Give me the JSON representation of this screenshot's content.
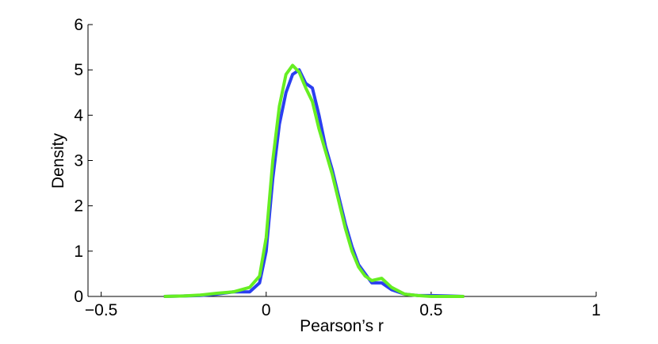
{
  "chart_data": {
    "type": "line",
    "x_label": "Pearson’s r",
    "y_label": "Density",
    "x": [
      -0.31,
      -0.25,
      -0.2,
      -0.15,
      -0.1,
      -0.05,
      -0.02,
      0,
      0.02,
      0.04,
      0.06,
      0.08,
      0.1,
      0.12,
      0.14,
      0.16,
      0.18,
      0.2,
      0.22,
      0.24,
      0.26,
      0.28,
      0.3,
      0.32,
      0.35,
      0.38,
      0.42,
      0.46,
      0.5,
      0.55,
      0.6
    ],
    "series": [
      {
        "color": "#2b3ff0",
        "values": [
          0,
          0.01,
          0.02,
          0.05,
          0.1,
          0.1,
          0.3,
          1.0,
          2.6,
          3.8,
          4.5,
          4.9,
          5.0,
          4.7,
          4.6,
          4.0,
          3.3,
          2.8,
          2.2,
          1.6,
          1.1,
          0.7,
          0.5,
          0.3,
          0.3,
          0.15,
          0.05,
          0.02,
          0.02,
          0.01,
          0
        ]
      },
      {
        "color": "#66ee22",
        "values": [
          0,
          0.01,
          0.03,
          0.07,
          0.1,
          0.2,
          0.45,
          1.3,
          3.0,
          4.2,
          4.9,
          5.1,
          4.95,
          4.6,
          4.3,
          3.7,
          3.2,
          2.7,
          2.1,
          1.5,
          1.0,
          0.65,
          0.45,
          0.35,
          0.4,
          0.2,
          0.05,
          0.02,
          0,
          0,
          0
        ]
      }
    ],
    "xlim": [
      -0.54,
      1
    ],
    "ylim": [
      0,
      6
    ],
    "xticks": [
      {
        "value": -0.5,
        "label": "−0.5"
      },
      0,
      0.5,
      1
    ],
    "yticks": [
      0,
      1,
      2,
      3,
      4,
      5,
      6
    ]
  }
}
